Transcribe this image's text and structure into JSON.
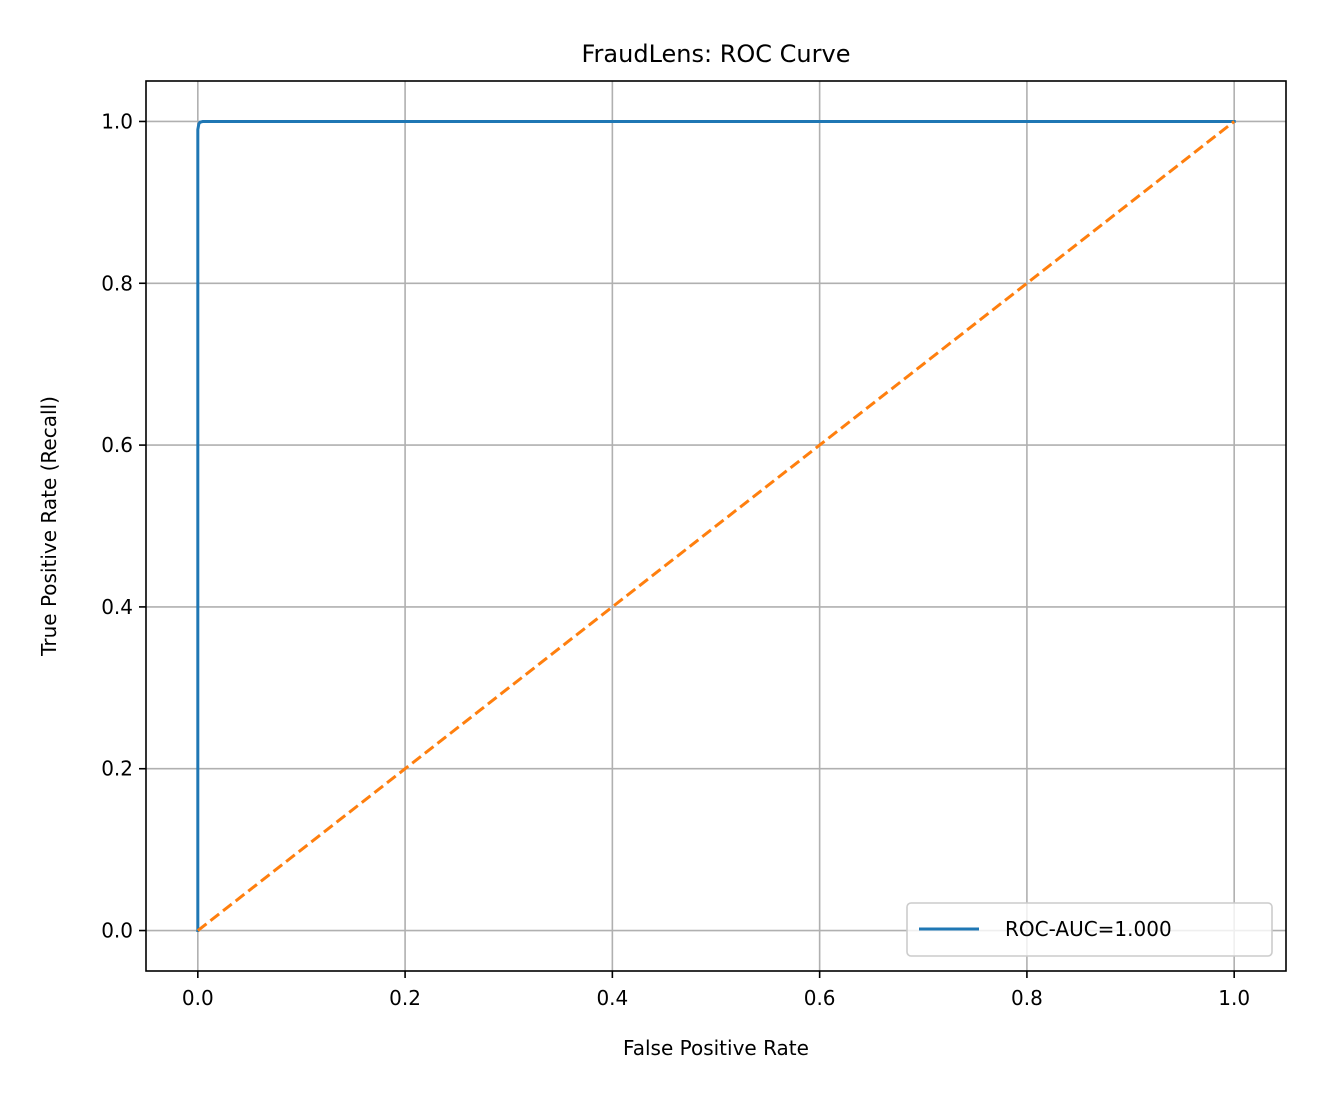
{
  "chart_data": {
    "type": "line",
    "title": "FraudLens: ROC Curve",
    "xlabel": "False Positive Rate",
    "ylabel": "True Positive Rate (Recall)",
    "xlim": [
      -0.05,
      1.05
    ],
    "ylim": [
      -0.05,
      1.05
    ],
    "xticks": [
      0.0,
      0.2,
      0.4,
      0.6,
      0.8,
      1.0
    ],
    "yticks": [
      0.0,
      0.2,
      0.4,
      0.6,
      0.8,
      1.0
    ],
    "xtick_labels": [
      "0.0",
      "0.2",
      "0.4",
      "0.6",
      "0.8",
      "1.0"
    ],
    "ytick_labels": [
      "0.0",
      "0.2",
      "0.4",
      "0.6",
      "0.8",
      "1.0"
    ],
    "grid": true,
    "legend_position": "lower-right",
    "series": [
      {
        "name": "ROC-AUC=1.000",
        "color": "#1f77b4",
        "style": "solid",
        "x": [
          0.0,
          0.0,
          0.001,
          0.002,
          0.005,
          0.1,
          0.5,
          1.0
        ],
        "y": [
          0.0,
          0.99,
          0.997,
          0.999,
          1.0,
          1.0,
          1.0,
          1.0
        ]
      },
      {
        "color": "#ff7f0e",
        "style": "dashed",
        "x": [
          0.0,
          1.0
        ],
        "y": [
          0.0,
          1.0
        ]
      }
    ]
  }
}
